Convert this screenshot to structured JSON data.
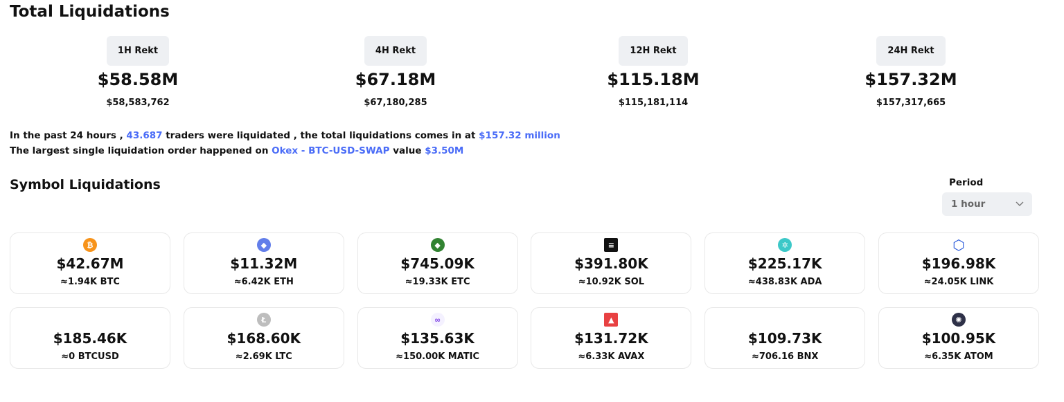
{
  "title": "Total Liquidations",
  "rekt": [
    {
      "label": "1H Rekt",
      "short": "$58.58M",
      "full": "$58,583,762"
    },
    {
      "label": "4H Rekt",
      "short": "$67.18M",
      "full": "$67,180,285"
    },
    {
      "label": "12H Rekt",
      "short": "$115.18M",
      "full": "$115,181,114"
    },
    {
      "label": "24H Rekt",
      "short": "$157.32M",
      "full": "$157,317,665"
    }
  ],
  "summary": {
    "l1a": "In the past 24 hours , ",
    "traders": "43.687",
    "l1b": " traders were liquidated , the total liquidations comes in at ",
    "total": "$157.32 million",
    "l2a": "The largest single liquidation order happened on ",
    "order": "Okex - BTC-USD-SWAP",
    "l2b": " value ",
    "value": "$3.50M"
  },
  "symbol_title": "Symbol Liquidations",
  "period": {
    "label": "Period",
    "selected": "1 hour"
  },
  "symbols": [
    {
      "icon": "bitcoin-icon",
      "color": "#f7931a",
      "glyph": "₿",
      "usd": "$42.67M",
      "amount": "≈1.94K BTC"
    },
    {
      "icon": "ethereum-icon",
      "color": "#627eea",
      "glyph": "◆",
      "usd": "$11.32M",
      "amount": "≈6.42K ETH"
    },
    {
      "icon": "ethereum-classic-icon",
      "color": "#328332",
      "glyph": "◆",
      "usd": "$745.09K",
      "amount": "≈19.33K ETC"
    },
    {
      "icon": "solana-icon",
      "color": "#111111",
      "glyph": "≡",
      "usd": "$391.80K",
      "amount": "≈10.92K SOL"
    },
    {
      "icon": "cardano-icon",
      "color": "#3cc8c8",
      "glyph": "✲",
      "usd": "$225.17K",
      "amount": "≈438.83K ADA"
    },
    {
      "icon": "chainlink-icon",
      "color": "#2a5ada",
      "glyph": "⬡",
      "usd": "$196.98K",
      "amount": "≈24.05K LINK"
    },
    {
      "icon": "",
      "color": "",
      "glyph": "",
      "usd": "$185.46K",
      "amount": "≈0 BTCUSD"
    },
    {
      "icon": "litecoin-icon",
      "color": "#bdbdbd",
      "glyph": "Ł",
      "usd": "$168.60K",
      "amount": "≈2.69K LTC"
    },
    {
      "icon": "polygon-icon",
      "color": "#f4f1ff",
      "glyph": "∞",
      "usd": "$135.63K",
      "amount": "≈150.00K MATIC"
    },
    {
      "icon": "avalanche-icon",
      "color": "#e84142",
      "glyph": "▲",
      "usd": "$131.72K",
      "amount": "≈6.33K AVAX"
    },
    {
      "icon": "",
      "color": "",
      "glyph": "",
      "usd": "$109.73K",
      "amount": "≈706.16 BNX"
    },
    {
      "icon": "cosmos-icon",
      "color": "#2e3148",
      "glyph": "✺",
      "usd": "$100.95K",
      "amount": "≈6.35K ATOM"
    }
  ]
}
